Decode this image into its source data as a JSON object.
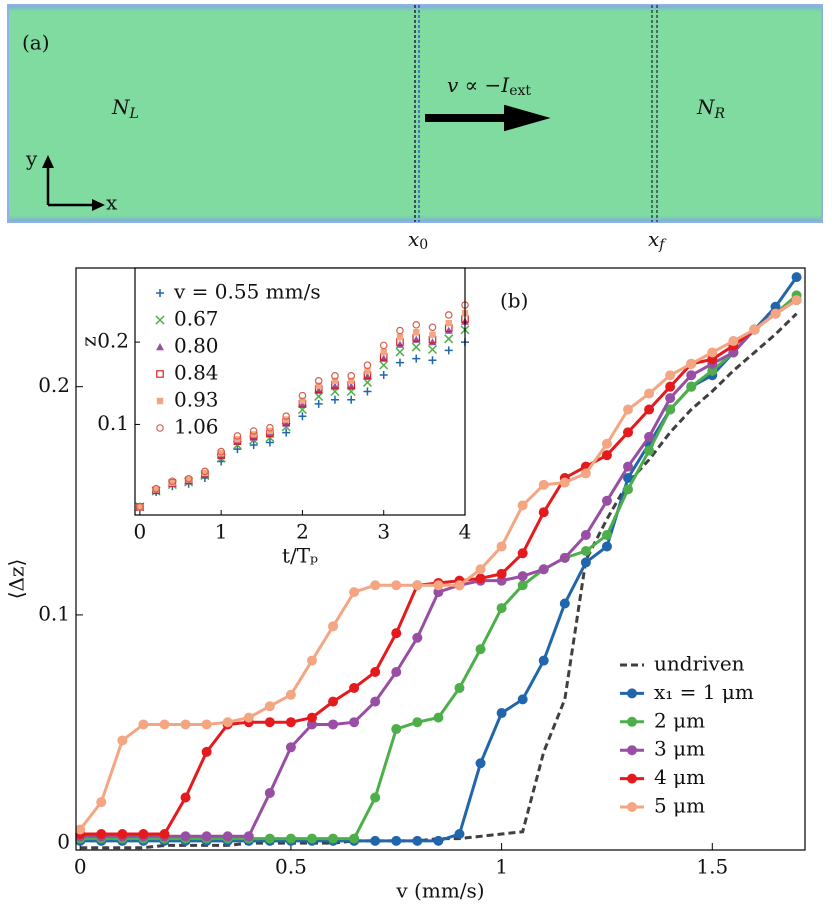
{
  "schematic": {
    "panel_label": "(a)",
    "left_region": {
      "symbol": "N",
      "subscript": "L"
    },
    "right_region": {
      "symbol": "N",
      "subscript": "R"
    },
    "drive_label": {
      "text": "v ∝ −I",
      "subscript": "ext"
    },
    "axis_y": "y",
    "axis_x": "x",
    "start_marker": {
      "symbol": "x",
      "subscript": "0"
    },
    "end_marker": {
      "symbol": "x",
      "subscript": "f"
    }
  },
  "chart_data": [
    {
      "type": "line",
      "panel_label": "(b)",
      "x_label": "v (mm/s)",
      "y_label": "⟨Δz⟩",
      "xlim": [
        -0.01,
        1.72
      ],
      "ylim": [
        -0.003,
        0.252
      ],
      "xticks": [
        0,
        0.5,
        1,
        1.5
      ],
      "yticks": [
        0,
        0.1,
        0.2
      ],
      "legend": "lower right",
      "x": [
        0,
        0.05,
        0.1,
        0.15,
        0.2,
        0.25,
        0.3,
        0.35,
        0.4,
        0.45,
        0.5,
        0.55,
        0.6,
        0.65,
        0.7,
        0.75,
        0.8,
        0.85,
        0.9,
        0.95,
        1.0,
        1.05,
        1.1,
        1.15,
        1.2,
        1.25,
        1.3,
        1.35,
        1.4,
        1.45,
        1.5,
        1.55,
        1.6,
        1.65,
        1.7
      ],
      "series": [
        {
          "name": "undriven",
          "color": "#404040",
          "dashed": true,
          "markers": false,
          "values": [
            -0.002,
            -0.002,
            -0.002,
            -0.002,
            -0.001,
            -0.001,
            -0.001,
            -0.001,
            0,
            0,
            0,
            0,
            0,
            0.001,
            0.001,
            0.001,
            0.001,
            0.002,
            0.002,
            0.003,
            0.004,
            0.005,
            0.04,
            0.063,
            0.124,
            0.142,
            0.158,
            0.168,
            0.18,
            0.19,
            0.198,
            0.207,
            0.215,
            0.223,
            0.232
          ]
        },
        {
          "name": "x₁ = 1 μm",
          "color": "#2166ac",
          "values": [
            0.001,
            0.001,
            0.001,
            0.001,
            0.001,
            0.001,
            0.001,
            0.001,
            0.001,
            0.001,
            0.001,
            0.001,
            0.001,
            0.001,
            0.001,
            0.001,
            0.001,
            0.001,
            0.004,
            0.035,
            0.057,
            0.063,
            0.08,
            0.105,
            0.123,
            0.13,
            0.16,
            0.175,
            0.19,
            0.2,
            0.205,
            0.215,
            0.225,
            0.235,
            0.248
          ]
        },
        {
          "name": "2 μm",
          "color": "#4daf4a",
          "values": [
            0.002,
            0.002,
            0.002,
            0.002,
            0.002,
            0.002,
            0.002,
            0.002,
            0.002,
            0.002,
            0.002,
            0.002,
            0.002,
            0.002,
            0.02,
            0.05,
            0.053,
            0.055,
            0.068,
            0.085,
            0.103,
            0.113,
            0.12,
            0.125,
            0.128,
            0.135,
            0.155,
            0.172,
            0.19,
            0.2,
            0.207,
            0.215,
            0.225,
            0.232,
            0.24
          ]
        },
        {
          "name": "3 μm",
          "color": "#984ea3",
          "values": [
            0.003,
            0.003,
            0.003,
            0.003,
            0.003,
            0.003,
            0.003,
            0.003,
            0.003,
            0.022,
            0.042,
            0.052,
            0.052,
            0.053,
            0.062,
            0.075,
            0.09,
            0.11,
            0.113,
            0.115,
            0.115,
            0.117,
            0.12,
            0.125,
            0.135,
            0.15,
            0.165,
            0.178,
            0.195,
            0.205,
            0.21,
            0.215,
            0.225,
            0.232,
            0.238
          ]
        },
        {
          "name": "4 μm",
          "color": "#e41a1c",
          "values": [
            0.004,
            0.004,
            0.004,
            0.004,
            0.004,
            0.02,
            0.04,
            0.052,
            0.053,
            0.053,
            0.053,
            0.055,
            0.062,
            0.068,
            0.075,
            0.092,
            0.113,
            0.114,
            0.115,
            0.116,
            0.118,
            0.127,
            0.145,
            0.16,
            0.165,
            0.17,
            0.18,
            0.19,
            0.2,
            0.21,
            0.212,
            0.218,
            0.225,
            0.232,
            0.238
          ]
        },
        {
          "name": "5 μm",
          "color": "#f4a582",
          "values": [
            0.006,
            0.018,
            0.045,
            0.052,
            0.052,
            0.052,
            0.052,
            0.053,
            0.055,
            0.06,
            0.065,
            0.08,
            0.095,
            0.11,
            0.113,
            0.113,
            0.113,
            0.113,
            0.113,
            0.12,
            0.13,
            0.148,
            0.157,
            0.158,
            0.162,
            0.175,
            0.19,
            0.197,
            0.205,
            0.21,
            0.215,
            0.22,
            0.225,
            0.232,
            0.238
          ]
        }
      ]
    },
    {
      "type": "scatter",
      "x_label": "t/Tₚ",
      "y_label": "z",
      "xlim": [
        -0.06,
        4.0
      ],
      "ylim": [
        -0.01,
        0.29
      ],
      "xticks": [
        0,
        1,
        2,
        3,
        4
      ],
      "yticks": [
        0.1,
        0.2
      ],
      "legend": "upper left",
      "x": [
        0,
        0.2,
        0.4,
        0.6,
        0.8,
        1.0,
        1.2,
        1.4,
        1.6,
        1.8,
        2.0,
        2.2,
        2.4,
        2.6,
        2.8,
        3.0,
        3.2,
        3.4,
        3.6,
        3.8,
        4.0
      ],
      "series": [
        {
          "name": "v = 0.55 mm/s",
          "color": "#2166ac",
          "marker": "plus",
          "values": [
            0,
            0.018,
            0.025,
            0.028,
            0.035,
            0.055,
            0.07,
            0.075,
            0.078,
            0.09,
            0.11,
            0.125,
            0.13,
            0.13,
            0.14,
            0.16,
            0.175,
            0.18,
            0.178,
            0.19,
            0.2
          ]
        },
        {
          "name": "0.67",
          "color": "#4daf4a",
          "marker": "cross",
          "values": [
            0,
            0.019,
            0.027,
            0.03,
            0.038,
            0.059,
            0.075,
            0.081,
            0.084,
            0.097,
            0.118,
            0.134,
            0.14,
            0.14,
            0.151,
            0.172,
            0.188,
            0.194,
            0.191,
            0.204,
            0.215
          ]
        },
        {
          "name": "0.80",
          "color": "#984ea3",
          "marker": "triangle",
          "values": [
            0,
            0.02,
            0.028,
            0.032,
            0.039,
            0.062,
            0.079,
            0.084,
            0.088,
            0.101,
            0.124,
            0.141,
            0.146,
            0.146,
            0.158,
            0.18,
            0.197,
            0.203,
            0.2,
            0.214,
            0.225
          ]
        },
        {
          "name": "0.84",
          "color": "#d7191c",
          "marker": "square-open",
          "values": [
            0,
            0.02,
            0.029,
            0.032,
            0.04,
            0.063,
            0.08,
            0.086,
            0.089,
            0.103,
            0.125,
            0.143,
            0.148,
            0.148,
            0.16,
            0.182,
            0.2,
            0.205,
            0.203,
            0.217,
            0.228
          ]
        },
        {
          "name": "0.93",
          "color": "#f4a582",
          "marker": "square",
          "values": [
            0,
            0.021,
            0.029,
            0.033,
            0.041,
            0.065,
            0.082,
            0.088,
            0.092,
            0.106,
            0.129,
            0.147,
            0.153,
            0.153,
            0.165,
            0.188,
            0.206,
            0.212,
            0.209,
            0.223,
            0.235
          ]
        },
        {
          "name": "1.06",
          "color": "#d6604d",
          "marker": "circle-open",
          "values": [
            0,
            0.022,
            0.031,
            0.034,
            0.043,
            0.067,
            0.086,
            0.092,
            0.096,
            0.11,
            0.135,
            0.153,
            0.159,
            0.159,
            0.172,
            0.196,
            0.214,
            0.221,
            0.218,
            0.233,
            0.245
          ]
        }
      ]
    }
  ]
}
